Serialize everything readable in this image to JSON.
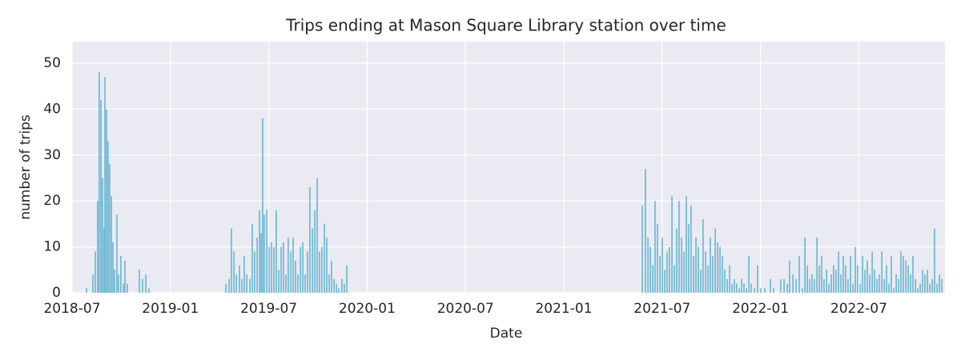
{
  "chart_data": {
    "type": "bar",
    "title": "Trips ending at Mason Square Library station over time",
    "x_label": "Date",
    "y_label": "number of trips",
    "color": "#68b5d2",
    "grid": true,
    "xlim": [
      2018.5,
      2022.938
    ],
    "ylim": [
      0,
      54.7
    ],
    "xticks": [
      {
        "value": 2018.5,
        "label": "2018-07"
      },
      {
        "value": 2019.0,
        "label": "2019-01"
      },
      {
        "value": 2019.5,
        "label": "2019-07"
      },
      {
        "value": 2020.0,
        "label": "2020-01"
      },
      {
        "value": 2020.5,
        "label": "2020-07"
      },
      {
        "value": 2021.0,
        "label": "2021-01"
      },
      {
        "value": 2021.5,
        "label": "2021-07"
      },
      {
        "value": 2022.0,
        "label": "2022-01"
      },
      {
        "value": 2022.5,
        "label": "2022-07"
      }
    ],
    "yticks": [
      0,
      10,
      20,
      30,
      40,
      50
    ],
    "x": [
      2018.573,
      2018.606,
      2018.618,
      2018.63,
      2018.638,
      2018.647,
      2018.655,
      2018.663,
      2018.667,
      2018.675,
      2018.683,
      2018.691,
      2018.7,
      2018.708,
      2018.716,
      2018.728,
      2018.736,
      2018.748,
      2018.761,
      2018.769,
      2018.781,
      2018.842,
      2018.858,
      2018.875,
      2018.891,
      2019.282,
      2019.298,
      2019.31,
      2019.323,
      2019.335,
      2019.351,
      2019.363,
      2019.375,
      2019.388,
      2019.404,
      2019.416,
      2019.428,
      2019.441,
      2019.453,
      2019.461,
      2019.469,
      2019.477,
      2019.49,
      2019.502,
      2019.514,
      2019.526,
      2019.538,
      2019.551,
      2019.563,
      2019.575,
      2019.587,
      2019.599,
      2019.612,
      2019.624,
      2019.636,
      2019.648,
      2019.661,
      2019.673,
      2019.685,
      2019.697,
      2019.709,
      2019.722,
      2019.734,
      2019.746,
      2019.758,
      2019.77,
      2019.783,
      2019.795,
      2019.807,
      2019.819,
      2019.832,
      2019.844,
      2019.856,
      2019.872,
      2019.884,
      2019.897,
      2021.399,
      2021.415,
      2021.428,
      2021.44,
      2021.452,
      2021.464,
      2021.476,
      2021.489,
      2021.501,
      2021.513,
      2021.525,
      2021.537,
      2021.55,
      2021.562,
      2021.574,
      2021.586,
      2021.599,
      2021.611,
      2021.623,
      2021.635,
      2021.647,
      2021.66,
      2021.672,
      2021.684,
      2021.696,
      2021.708,
      2021.721,
      2021.733,
      2021.745,
      2021.757,
      2021.77,
      2021.782,
      2021.794,
      2021.806,
      2021.818,
      2021.831,
      2021.843,
      2021.855,
      2021.867,
      2021.879,
      2021.892,
      2021.904,
      2021.916,
      2021.928,
      2021.941,
      2021.953,
      2021.969,
      2021.985,
      2022.002,
      2022.022,
      2022.051,
      2022.067,
      2022.103,
      2022.12,
      2022.136,
      2022.148,
      2022.165,
      2022.181,
      2022.197,
      2022.213,
      2022.226,
      2022.238,
      2022.25,
      2022.262,
      2022.274,
      2022.287,
      2022.299,
      2022.311,
      2022.323,
      2022.336,
      2022.348,
      2022.36,
      2022.372,
      2022.384,
      2022.397,
      2022.409,
      2022.421,
      2022.433,
      2022.445,
      2022.458,
      2022.47,
      2022.482,
      2022.494,
      2022.507,
      2022.519,
      2022.531,
      2022.543,
      2022.555,
      2022.568,
      2022.58,
      2022.592,
      2022.604,
      2022.617,
      2022.629,
      2022.641,
      2022.653,
      2022.665,
      2022.678,
      2022.69,
      2022.702,
      2022.714,
      2022.726,
      2022.739,
      2022.751,
      2022.763,
      2022.775,
      2022.788,
      2022.8,
      2022.812,
      2022.824,
      2022.836,
      2022.849,
      2022.861,
      2022.873,
      2022.885,
      2022.898,
      2022.91,
      2022.922
    ],
    "values": [
      1,
      4,
      9,
      20,
      48,
      42,
      25,
      14,
      47,
      40,
      33,
      28,
      21,
      11,
      5,
      17,
      4,
      8,
      2,
      7,
      2,
      5,
      3,
      4,
      1,
      2,
      3,
      14,
      9,
      4,
      6,
      3,
      8,
      4,
      3,
      15,
      9,
      12,
      18,
      13,
      38,
      17,
      18,
      10,
      11,
      10,
      18,
      5,
      10,
      11,
      4,
      12,
      9,
      12,
      7,
      4,
      10,
      11,
      4,
      9,
      23,
      14,
      18,
      25,
      9,
      10,
      15,
      12,
      4,
      7,
      3,
      2,
      1,
      3,
      2,
      6,
      19,
      27,
      12,
      10,
      6,
      20,
      15,
      8,
      12,
      5,
      9,
      10,
      21,
      6,
      14,
      20,
      12,
      9,
      21,
      15,
      19,
      8,
      12,
      10,
      5,
      16,
      9,
      6,
      12,
      8,
      14,
      11,
      10,
      8,
      5,
      3,
      6,
      2,
      3,
      2,
      1,
      3,
      2,
      1,
      8,
      2,
      1,
      6,
      1,
      1,
      3,
      1,
      3,
      3,
      2,
      7,
      4,
      3,
      8,
      1,
      12,
      6,
      3,
      4,
      3,
      12,
      6,
      8,
      3,
      5,
      2,
      4,
      6,
      5,
      9,
      4,
      8,
      6,
      3,
      8,
      2,
      10,
      6,
      2,
      8,
      5,
      7,
      4,
      9,
      5,
      3,
      4,
      9,
      3,
      6,
      2,
      8,
      1,
      4,
      3,
      9,
      8,
      7,
      6,
      4,
      8,
      3,
      1,
      2,
      5,
      4,
      5,
      2,
      3,
      14,
      2,
      4,
      3
    ]
  }
}
